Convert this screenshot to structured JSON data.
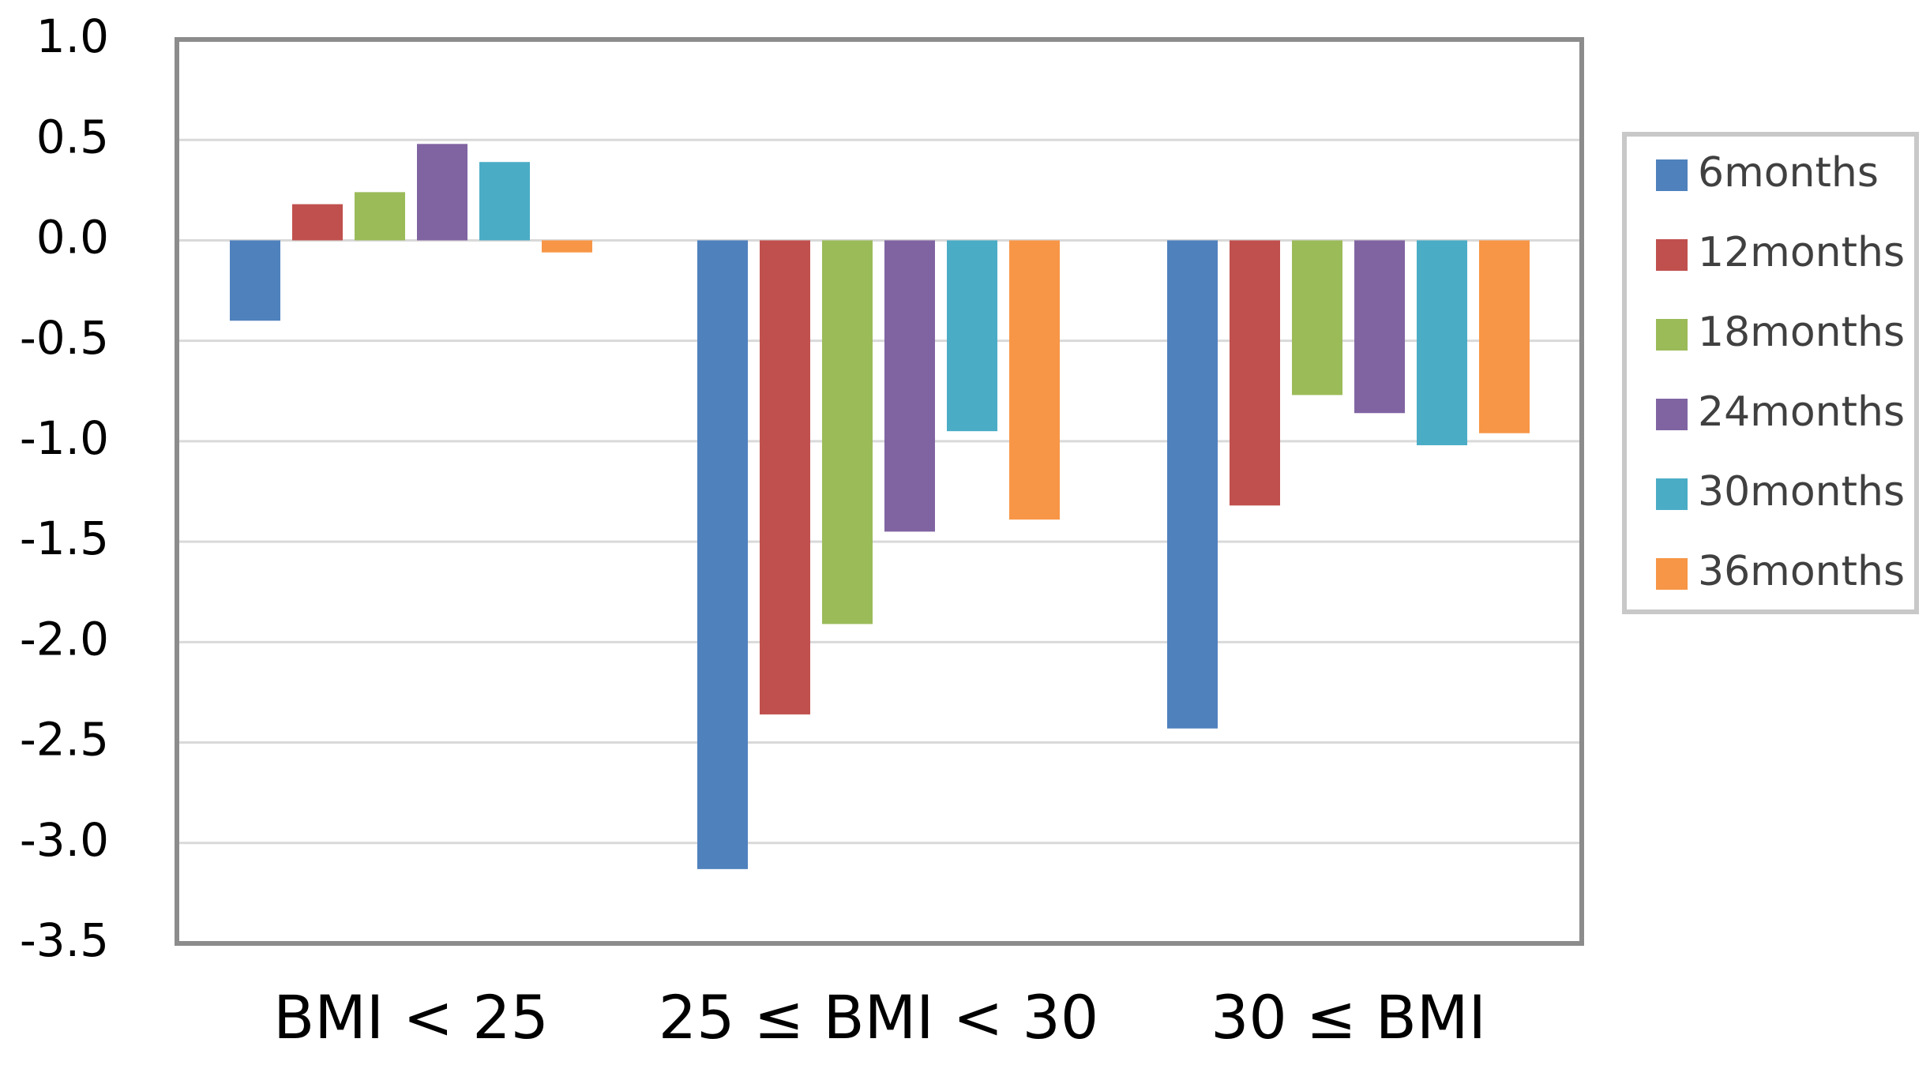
{
  "chart_data": {
    "type": "bar",
    "title": "",
    "xlabel": "",
    "ylabel": "",
    "categories": [
      "BMI < 25",
      "25 ≤ BMI < 30",
      "30 ≤ BMI"
    ],
    "ylim": [
      -3.5,
      1.0
    ],
    "yticks": [
      1.0,
      0.5,
      0.0,
      -0.5,
      -1.0,
      -1.5,
      -2.0,
      -2.5,
      -3.0,
      -3.5
    ],
    "ytick_labels": [
      "1.0",
      "0.5",
      "0.0",
      "-0.5",
      "-1.0",
      "-1.5",
      "-2.0",
      "-2.5",
      "-3.0",
      "-3.5"
    ],
    "grid": true,
    "legend_position": "right",
    "series": [
      {
        "name": "6months",
        "color": "#4F81BD",
        "values": [
          -0.4,
          -3.13,
          -2.43
        ]
      },
      {
        "name": "12months",
        "color": "#C0504D",
        "values": [
          0.18,
          -2.36,
          -1.32
        ]
      },
      {
        "name": "18months",
        "color": "#9BBB59",
        "values": [
          0.24,
          -1.91,
          -0.77
        ]
      },
      {
        "name": "24months",
        "color": "#8064A2",
        "values": [
          0.48,
          -1.45,
          -0.86
        ]
      },
      {
        "name": "30months",
        "color": "#4BACC6",
        "values": [
          0.39,
          -0.95,
          -1.02
        ]
      },
      {
        "name": "36months",
        "color": "#F79646",
        "values": [
          -0.06,
          -1.39,
          -0.96
        ]
      }
    ]
  }
}
